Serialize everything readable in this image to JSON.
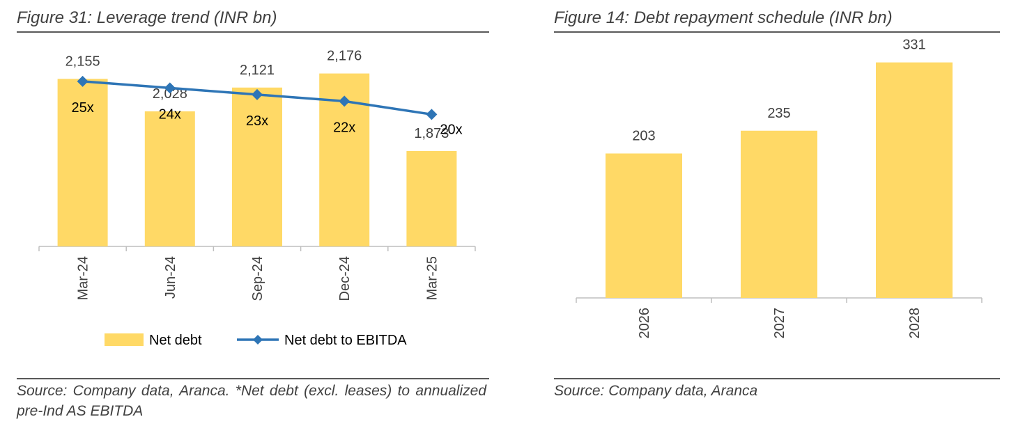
{
  "left": {
    "title": "Figure 31: Leverage trend (INR bn)",
    "source": "Source: Company data, Aranca. *Net debt (excl. leases) to annualized pre-Ind AS EBITDA"
  },
  "right": {
    "title": "Figure 14: Debt repayment schedule (INR bn)",
    "source": "Source: Company data, Aranca"
  },
  "colors": {
    "bar": "#FFD966",
    "line": "#2E75B6",
    "text": "#404040",
    "axis": "#BFBFBF"
  },
  "chart_data": [
    {
      "type": "bar",
      "title": "Figure 31: Leverage trend (INR bn)",
      "categories": [
        "Mar-24",
        "Jun-24",
        "Sep-24",
        "Dec-24",
        "Mar-25"
      ],
      "series": [
        {
          "name": "Net debt",
          "type": "bar",
          "axis": "primary",
          "values": [
            2155,
            2028,
            2121,
            2176,
            1873
          ],
          "labels": [
            "2,155",
            "2,028",
            "2,121",
            "2,176",
            "1,873"
          ]
        },
        {
          "name": "Net debt to EBITDA",
          "type": "line",
          "axis": "secondary",
          "values": [
            25,
            24,
            23,
            22,
            20
          ],
          "labels": [
            "25x",
            "24x",
            "23x",
            "22x",
            "20x"
          ]
        }
      ],
      "ylim": [
        1500,
        2300
      ],
      "y2lim": [
        0,
        31
      ],
      "legend": "bottom",
      "grid": false
    },
    {
      "type": "bar",
      "title": "Figure 14: Debt repayment schedule (INR bn)",
      "categories": [
        "2026",
        "2027",
        "2028"
      ],
      "series": [
        {
          "name": "",
          "values": [
            203,
            235,
            331
          ],
          "labels": [
            "203",
            "235",
            "331"
          ]
        }
      ],
      "ylim": [
        0,
        360
      ],
      "legend": "none",
      "grid": false
    }
  ]
}
